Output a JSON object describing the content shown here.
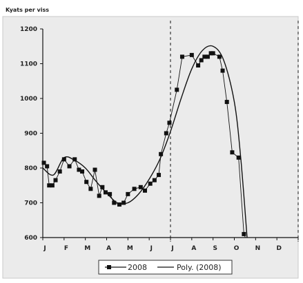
{
  "chart_data": {
    "type": "scatter",
    "title": "Kyats per viss",
    "xlabel": "",
    "ylabel": "",
    "x_ticks": [
      "J",
      "F",
      "M",
      "A",
      "M",
      "J",
      "J",
      "A",
      "S",
      "O",
      "N",
      "D"
    ],
    "xlim": [
      0,
      12
    ],
    "ylim": [
      600,
      1200
    ],
    "y_ticks": [
      600,
      700,
      800,
      900,
      1000,
      1100,
      1200
    ],
    "grid": false,
    "vertical_markers": [
      6,
      12
    ],
    "legend_position": "bottom-center",
    "series": [
      {
        "name": "2008",
        "kind": "points",
        "color": "#111111",
        "x": [
          0.05,
          0.2,
          0.3,
          0.45,
          0.6,
          0.8,
          1.0,
          1.25,
          1.5,
          1.7,
          1.85,
          2.05,
          2.25,
          2.45,
          2.65,
          2.8,
          2.95,
          3.15,
          3.35,
          3.6,
          3.8,
          4.0,
          4.3,
          4.6,
          4.8,
          5.05,
          5.25,
          5.45,
          5.55,
          5.8,
          5.95,
          6.3,
          6.55,
          7.0,
          7.3,
          7.45,
          7.6,
          7.75,
          7.9,
          8.0,
          8.3,
          8.45,
          8.65,
          8.9,
          9.2,
          9.45,
          9.65
        ],
        "y": [
          815,
          805,
          750,
          750,
          765,
          790,
          825,
          805,
          825,
          795,
          790,
          760,
          740,
          795,
          720,
          745,
          730,
          725,
          700,
          695,
          700,
          725,
          740,
          745,
          735,
          755,
          765,
          780,
          840,
          900,
          930,
          1025,
          1120,
          1125,
          1095,
          1110,
          1120,
          1120,
          1130,
          1130,
          1120,
          1080,
          990,
          845,
          830,
          610,
          580
        ]
      },
      {
        "name": "Poly. (2008)",
        "kind": "trendline",
        "color": "#111111",
        "x": [
          0,
          0.5,
          1.0,
          1.5,
          2.0,
          2.5,
          3.0,
          3.5,
          4.0,
          4.5,
          5.0,
          5.5,
          6.0,
          6.5,
          7.0,
          7.5,
          8.0,
          8.5,
          9.0,
          9.3,
          9.6
        ],
        "y": [
          800,
          780,
          830,
          822,
          800,
          762,
          728,
          700,
          700,
          725,
          768,
          825,
          905,
          1000,
          1085,
          1138,
          1150,
          1110,
          990,
          830,
          600
        ]
      }
    ]
  }
}
